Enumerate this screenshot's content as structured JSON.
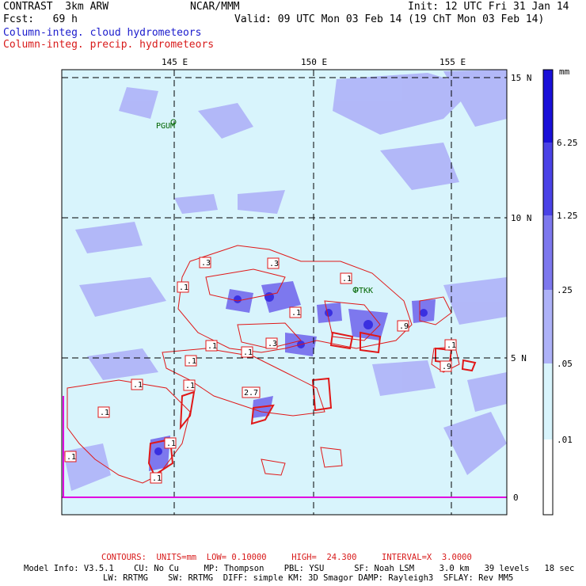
{
  "header": {
    "model": "CONTRAST  3km ARW",
    "center": "NCAR/MMM",
    "init": "Init: 12 UTC Fri 31 Jan 14",
    "fcst": "Fcst:   69 h",
    "valid": "Valid: 09 UTC Mon 03 Feb 14 (19 ChT Mon 03 Feb 14)",
    "field_cloud": "Column-integ. cloud hydrometeors",
    "field_precip": "Column-integ. precip. hydrometeors"
  },
  "axes": {
    "lon_labels": [
      "145 E",
      "150 E",
      "155 E"
    ],
    "lat_labels": [
      "15 N",
      "10 N",
      "5 N",
      "0"
    ]
  },
  "stations": [
    "PGUM",
    "PTKK"
  ],
  "contour_labels": [
    ".3",
    ".3",
    ".1",
    ".1",
    ".1",
    ".9",
    ".1",
    ".1",
    ".1",
    ".3",
    ".1",
    ".1",
    ".9",
    ".1",
    "2.7",
    ".1",
    ".1",
    ".1",
    ".1"
  ],
  "colorbar": {
    "units": "mm",
    "labels": [
      "6.25",
      "1.25",
      ".25",
      ".05",
      ".01"
    ],
    "colors": [
      "#1a10d8",
      "#4a42e6",
      "#7d78ee",
      "#aeb2f8",
      "#d8f4fc",
      "#ffffff"
    ]
  },
  "footer": {
    "contours": "CONTOURS:  UNITS=mm  LOW= 0.10000     HIGH=  24.300     INTERVAL=X  3.0000",
    "model_info_1": "Model Info: V3.5.1    CU: No Cu     MP: Thompson    PBL: YSU      SF: Noah LSM     3.0 km   39 levels   18 sec",
    "model_info_2": "LW: RRTMG    SW: RRTMG  DIFF: simple KM: 3D Smagor DAMP: Rayleigh3  SFLAY: Rev MM5"
  }
}
